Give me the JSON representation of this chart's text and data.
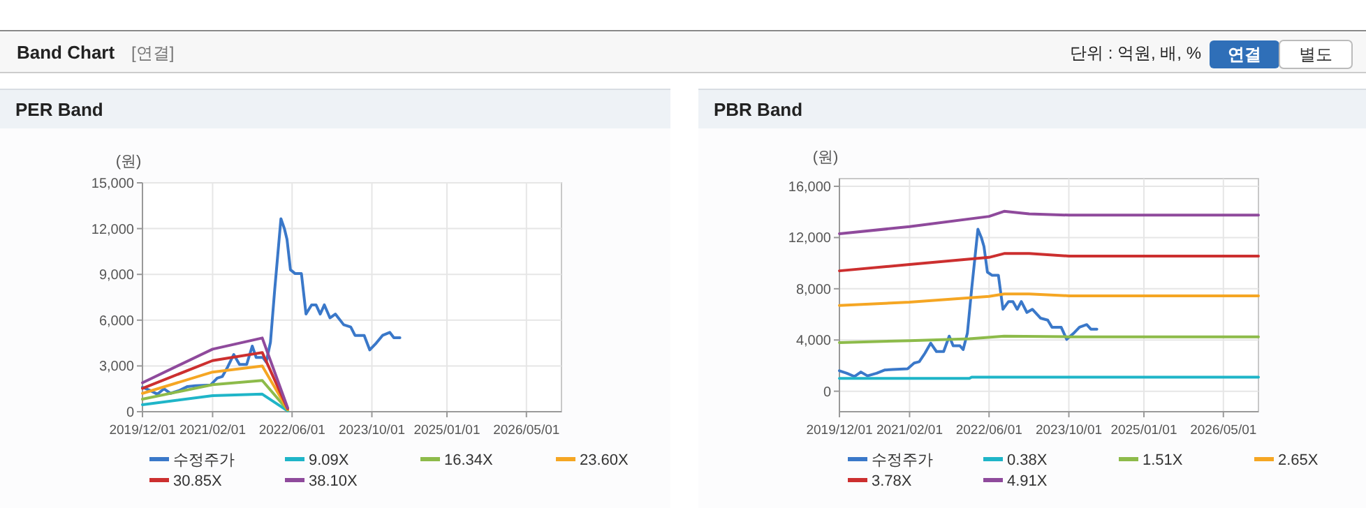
{
  "chart_data": [
    {
      "type": "other",
      "title": "Band Chart",
      "annotations": [
        "[연결]",
        "단위 : 억원, 배, %",
        "연결",
        "별도"
      ]
    },
    {
      "type": "line",
      "title": "PER Band",
      "ylabel": "(원)",
      "legend": "bottom",
      "grid": true,
      "xlim": [
        "2019-12-01",
        "2026-12-01"
      ],
      "xticks": [
        {
          "value": "2019-12-01",
          "label": "2019/12/01"
        },
        {
          "value": "2021-02-01",
          "label": "2021/02/01"
        },
        {
          "value": "2022-06-01",
          "label": "2022/06/01"
        },
        {
          "value": "2023-10-01",
          "label": "2023/10/01"
        },
        {
          "value": "2025-01-01",
          "label": "2025/01/01"
        },
        {
          "value": "2026-05-01",
          "label": "2026/05/01"
        }
      ],
      "ylim": [
        0,
        15000
      ],
      "yticks": [
        {
          "value": 0,
          "label": "0"
        },
        {
          "value": 3000,
          "label": "3,000"
        },
        {
          "value": 6000,
          "label": "6,000"
        },
        {
          "value": 9000,
          "label": "9,000"
        },
        {
          "value": 12000,
          "label": "12,000"
        },
        {
          "value": 15000,
          "label": "15,000"
        }
      ],
      "series": [
        {
          "name": "수정주가",
          "color": "#3a78c9",
          "x": [
            "2019-12-01",
            "2020-01-15",
            "2020-03-01",
            "2020-04-10",
            "2020-05-20",
            "2020-07-15",
            "2020-09-01",
            "2020-10-20",
            "2021-01-20",
            "2021-03-01",
            "2021-04-01",
            "2021-05-05",
            "2021-06-10",
            "2021-07-15",
            "2021-08-28",
            "2021-10-01",
            "2021-10-25",
            "2021-12-05",
            "2021-12-25",
            "2022-01-20",
            "2022-02-15",
            "2022-03-05",
            "2022-03-25",
            "2022-04-15",
            "2022-05-01",
            "2022-05-22",
            "2022-06-20",
            "2022-07-28",
            "2022-08-25",
            "2022-09-28",
            "2022-10-25",
            "2022-11-20",
            "2022-12-15",
            "2023-01-18",
            "2023-02-20",
            "2023-04-12",
            "2023-05-25",
            "2023-06-20",
            "2023-08-15",
            "2023-09-18",
            "2023-10-28",
            "2023-12-05",
            "2024-01-18",
            "2024-02-12",
            "2024-03-20"
          ],
          "values": [
            1600,
            1400,
            1150,
            1500,
            1200,
            1400,
            1650,
            1700,
            1750,
            2200,
            2300,
            2950,
            3750,
            3100,
            3100,
            4300,
            3550,
            3550,
            3250,
            4550,
            8000,
            10200,
            12650,
            12000,
            11300,
            9300,
            9050,
            9050,
            6400,
            7000,
            7000,
            6400,
            7000,
            6150,
            6400,
            5700,
            5550,
            5000,
            5000,
            4050,
            4500,
            5000,
            5200,
            4850,
            4850
          ]
        },
        {
          "name": "9.09X",
          "color": "#1fb5c8",
          "x": [
            "2019-12-01",
            "2021-02-01",
            "2021-12-01",
            "2022-05-05"
          ],
          "values": [
            460,
            1050,
            1150,
            50
          ]
        },
        {
          "name": "16.34X",
          "color": "#8dbb4a",
          "x": [
            "2019-12-01",
            "2021-02-01",
            "2021-12-01",
            "2022-05-05"
          ],
          "values": [
            820,
            1770,
            2050,
            100
          ]
        },
        {
          "name": "23.60X",
          "color": "#f5a623",
          "x": [
            "2019-12-01",
            "2021-02-01",
            "2021-12-01",
            "2022-05-05"
          ],
          "values": [
            1200,
            2600,
            3000,
            150
          ]
        },
        {
          "name": "30.85X",
          "color": "#cc2f2f",
          "x": [
            "2019-12-01",
            "2021-02-01",
            "2021-12-01",
            "2022-05-05"
          ],
          "values": [
            1530,
            3350,
            3880,
            200
          ]
        },
        {
          "name": "38.10X",
          "color": "#8f4a9c",
          "x": [
            "2019-12-01",
            "2021-02-01",
            "2021-12-01",
            "2022-05-05"
          ],
          "values": [
            1900,
            4100,
            4830,
            250
          ]
        }
      ]
    },
    {
      "type": "line",
      "title": "PBR Band",
      "ylabel": "(원)",
      "legend": "bottom",
      "grid": true,
      "xlim": [
        "2019-12-01",
        "2026-12-01"
      ],
      "xticks": [
        {
          "value": "2019-12-01",
          "label": "2019/12/01"
        },
        {
          "value": "2021-02-01",
          "label": "2021/02/01"
        },
        {
          "value": "2022-06-01",
          "label": "2022/06/01"
        },
        {
          "value": "2023-10-01",
          "label": "2023/10/01"
        },
        {
          "value": "2025-01-01",
          "label": "2025/01/01"
        },
        {
          "value": "2026-05-01",
          "label": "2026/05/01"
        }
      ],
      "ylim": [
        -1600,
        16600
      ],
      "yticks": [
        {
          "value": 0,
          "label": "0"
        },
        {
          "value": 4000,
          "label": "4,000"
        },
        {
          "value": 8000,
          "label": "8,000"
        },
        {
          "value": 12000,
          "label": "12,000"
        },
        {
          "value": 16000,
          "label": "16,000"
        }
      ],
      "series": [
        {
          "name": "수정주가",
          "color": "#3a78c9",
          "x": [
            "2019-12-01",
            "2020-01-15",
            "2020-03-01",
            "2020-04-10",
            "2020-05-20",
            "2020-07-15",
            "2020-09-01",
            "2020-10-20",
            "2021-01-20",
            "2021-03-01",
            "2021-04-01",
            "2021-05-05",
            "2021-06-10",
            "2021-07-15",
            "2021-08-28",
            "2021-10-01",
            "2021-10-25",
            "2021-12-05",
            "2021-12-25",
            "2022-01-20",
            "2022-02-15",
            "2022-03-05",
            "2022-03-25",
            "2022-04-15",
            "2022-05-01",
            "2022-05-22",
            "2022-06-20",
            "2022-07-28",
            "2022-08-25",
            "2022-09-28",
            "2022-10-25",
            "2022-11-20",
            "2022-12-15",
            "2023-01-18",
            "2023-02-20",
            "2023-04-12",
            "2023-05-25",
            "2023-06-20",
            "2023-08-15",
            "2023-09-18",
            "2023-10-28",
            "2023-12-05",
            "2024-01-18",
            "2024-02-12",
            "2024-03-20"
          ],
          "values": [
            1600,
            1400,
            1150,
            1500,
            1200,
            1400,
            1650,
            1700,
            1750,
            2200,
            2300,
            2950,
            3750,
            3100,
            3100,
            4300,
            3550,
            3550,
            3250,
            4550,
            8000,
            10200,
            12650,
            12000,
            11300,
            9300,
            9050,
            9050,
            6400,
            7000,
            7000,
            6400,
            7000,
            6150,
            6400,
            5700,
            5550,
            5000,
            5000,
            4050,
            4500,
            5000,
            5200,
            4850,
            4850
          ]
        },
        {
          "name": "0.38X",
          "color": "#1fb5c8",
          "x": [
            "2019-12-01",
            "2022-02-01",
            "2022-02-15",
            "2026-12-01"
          ],
          "values": [
            1000,
            1000,
            1100,
            1100
          ]
        },
        {
          "name": "1.51X",
          "color": "#8dbb4a",
          "x": [
            "2019-12-01",
            "2021-02-01",
            "2022-02-01",
            "2022-09-01",
            "2023-10-01",
            "2026-12-01"
          ],
          "values": [
            3800,
            3950,
            4100,
            4300,
            4250,
            4250
          ]
        },
        {
          "name": "2.65X",
          "color": "#f5a623",
          "x": [
            "2019-12-01",
            "2021-02-01",
            "2022-06-01",
            "2022-09-01",
            "2023-02-01",
            "2023-10-01",
            "2026-12-01"
          ],
          "values": [
            6700,
            6950,
            7400,
            7600,
            7600,
            7450,
            7450
          ]
        },
        {
          "name": "3.78X",
          "color": "#cc2f2f",
          "x": [
            "2019-12-01",
            "2021-02-01",
            "2022-06-01",
            "2022-09-01",
            "2023-02-01",
            "2023-10-01",
            "2026-12-01"
          ],
          "values": [
            9400,
            9900,
            10450,
            10750,
            10750,
            10550,
            10550
          ]
        },
        {
          "name": "4.91X",
          "color": "#8f4a9c",
          "x": [
            "2019-12-01",
            "2021-02-01",
            "2022-06-01",
            "2022-09-01",
            "2023-02-01",
            "2023-10-01",
            "2026-12-01"
          ],
          "values": [
            12300,
            12850,
            13650,
            14050,
            13850,
            13750,
            13750
          ]
        }
      ]
    }
  ]
}
